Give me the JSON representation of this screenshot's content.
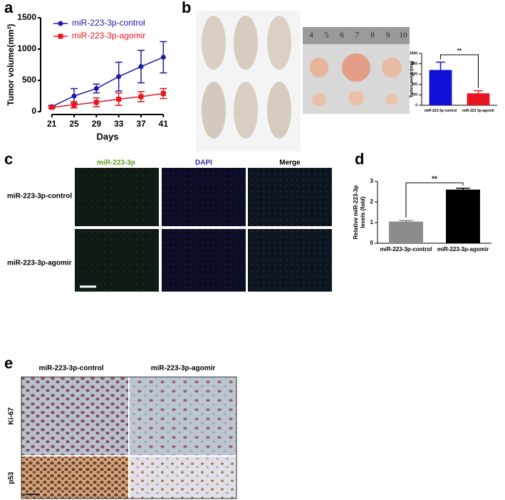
{
  "panel_labels": [
    "a",
    "b",
    "c",
    "d",
    "e"
  ],
  "chart_data": [
    {
      "type": "line",
      "xlabel": "Days",
      "ylabel": "Tumor volume(mm³)",
      "x": [
        21,
        25,
        29,
        33,
        37,
        41
      ],
      "xlim": [
        19,
        43
      ],
      "xticks": [
        21,
        25,
        29,
        33,
        37,
        41
      ],
      "ylim": [
        0,
        1500
      ],
      "yticks": [
        0,
        500,
        1000,
        1500
      ],
      "series": [
        {
          "name": "miR-223-3p-control",
          "color": "#1a1aa6",
          "values": [
            80,
            250,
            370,
            560,
            720,
            870
          ],
          "errors": [
            20,
            120,
            70,
            230,
            260,
            250
          ]
        },
        {
          "name": "miR-223-3p-agomir",
          "color": "#e8141e",
          "values": [
            70,
            110,
            150,
            200,
            240,
            290
          ],
          "errors": [
            15,
            50,
            70,
            100,
            80,
            80
          ]
        }
      ]
    },
    {
      "type": "bar",
      "ylabel": "Tumor weight(mg)",
      "categories": [
        "miR-223-3p-control",
        "miR-223-3p-agomir"
      ],
      "values": [
        680,
        230
      ],
      "errors": [
        150,
        50
      ],
      "colors": [
        "#1010d8",
        "#e8141e"
      ],
      "ylim": [
        0,
        1000
      ],
      "yticks": [
        0,
        200,
        400,
        600,
        800,
        1000
      ],
      "annotation": "**"
    },
    {
      "type": "bar",
      "ylabel": [
        "Relative miR-223-3p",
        "levels (fold)"
      ],
      "categories": [
        "miR-223-3p-control",
        "miR-223-3p-agomir"
      ],
      "values": [
        1.05,
        2.6
      ],
      "errors": [
        0.05,
        0.07
      ],
      "colors": [
        "#8c8c8c",
        "#000000"
      ],
      "ylim": [
        0,
        3
      ],
      "yticks": [
        0,
        1,
        2,
        3
      ],
      "annotation": "**"
    }
  ],
  "ruler_numbers": [
    "4",
    "5",
    "6",
    "7",
    "8",
    "9",
    "10"
  ],
  "panel_c": {
    "column_headers": [
      "miR-223-3p",
      "DAPI",
      "Merge"
    ],
    "row_labels": [
      "miR-223-3p-control",
      "miR-223-3p-agomir"
    ]
  },
  "panel_e": {
    "column_headers": [
      "miR-223-3p-control",
      "miR-223-3p-agomir"
    ],
    "row_labels": [
      "Ki-67",
      "p53"
    ]
  }
}
